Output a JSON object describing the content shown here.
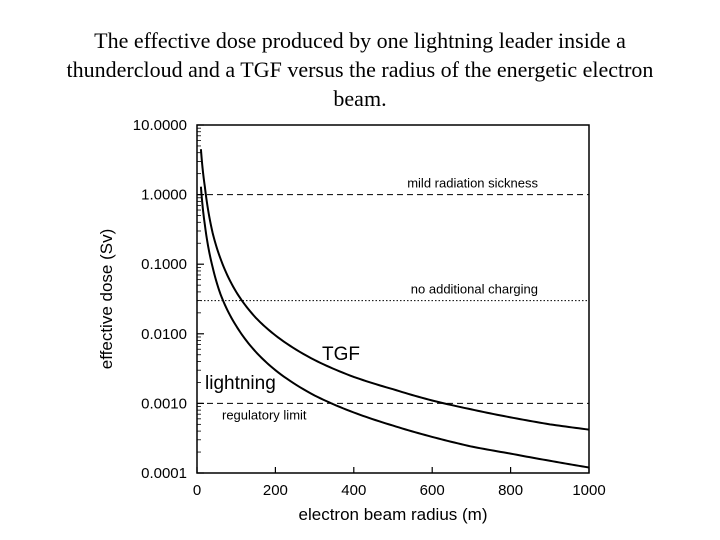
{
  "chart_data": {
    "type": "line",
    "title": "The effective dose produced by one lightning leader inside a thundercloud and a TGF versus the radius of the energetic electron beam.",
    "xlabel": "electron beam radius (m)",
    "ylabel": "effective dose (Sv)",
    "xlim": [
      0,
      1000
    ],
    "ylim": [
      0.0001,
      10
    ],
    "yscale": "log",
    "xticks": [
      0,
      200,
      400,
      600,
      800,
      1000
    ],
    "xtick_labels": [
      "0",
      "200",
      "400",
      "600",
      "800",
      "1000"
    ],
    "yticks": [
      0.0001,
      0.001,
      0.01,
      0.1,
      1,
      10
    ],
    "ytick_labels": [
      "0.0001",
      "0.0010",
      "0.0100",
      "0.1000",
      "1.0000",
      "10.0000"
    ],
    "series": [
      {
        "name": "TGF",
        "x": [
          10,
          20,
          40,
          60,
          100,
          150,
          200,
          300,
          400,
          500,
          600,
          700,
          800,
          900,
          1000
        ],
        "y": [
          4.5,
          1.3,
          0.28,
          0.12,
          0.04,
          0.017,
          0.0095,
          0.0042,
          0.0024,
          0.0016,
          0.0011,
          0.00082,
          0.00063,
          0.0005,
          0.00042
        ]
      },
      {
        "name": "lightning",
        "x": [
          10,
          20,
          40,
          60,
          100,
          150,
          200,
          300,
          400,
          500,
          600,
          700,
          800,
          900,
          1000
        ],
        "y": [
          1.3,
          0.37,
          0.09,
          0.037,
          0.013,
          0.0055,
          0.003,
          0.0013,
          0.00074,
          0.00048,
          0.00033,
          0.00024,
          0.00019,
          0.00015,
          0.00012
        ]
      }
    ],
    "reference_lines": [
      {
        "label": "mild radiation sickness",
        "y": 1.0,
        "style": "dashed"
      },
      {
        "label": "no additional charging",
        "y": 0.03,
        "style": "dotted"
      },
      {
        "label": "regulatory limit",
        "y": 0.001,
        "style": "dashed"
      }
    ]
  }
}
